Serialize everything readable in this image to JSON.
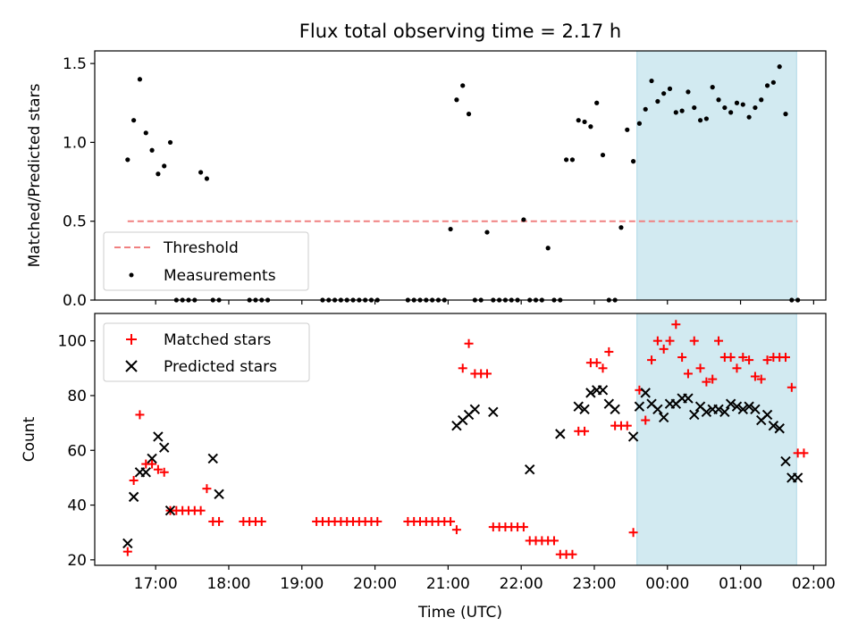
{
  "title": "Flux total observing time = 2.17 h",
  "colors": {
    "background": "#ffffff",
    "shade": "#add8e6",
    "threshold": "#f08080",
    "measurements": "#000000",
    "matched": "#ff0000",
    "predicted": "#000000"
  },
  "chart_data": [
    {
      "type": "scatter",
      "ylabel": "Matched/Predicted stars",
      "xlim": [
        "16:10",
        "26:10"
      ],
      "ylim": [
        0,
        1.58
      ],
      "yticks": [
        0.0,
        0.5,
        1.0,
        1.5
      ],
      "ytick_labels": [
        "0.0",
        "0.5",
        "1.0",
        "1.5"
      ],
      "grid": false,
      "legend": {
        "position": "lower-left",
        "entries": [
          "Threshold",
          "Measurements"
        ]
      },
      "shaded_region": {
        "x_start": "23:35",
        "x_end": "25:46"
      },
      "threshold": {
        "name": "Threshold",
        "value": 0.5,
        "x_start": "16:37",
        "x_end": "25:47",
        "style": "dashed"
      },
      "series": [
        {
          "name": "Measurements",
          "marker": "dot",
          "x": [
            "16:37",
            "16:42",
            "16:47",
            "16:52",
            "16:57",
            "17:02",
            "17:07",
            "17:12",
            "17:17",
            "17:22",
            "17:27",
            "17:32",
            "17:37",
            "17:42",
            "17:47",
            "17:52",
            "18:17",
            "18:22",
            "18:27",
            "18:32",
            "19:17",
            "19:22",
            "19:27",
            "19:32",
            "19:37",
            "19:42",
            "19:47",
            "19:52",
            "19:57",
            "20:02",
            "20:27",
            "20:32",
            "20:37",
            "20:42",
            "20:47",
            "20:52",
            "20:57",
            "21:02",
            "21:07",
            "21:12",
            "21:17",
            "21:22",
            "21:27",
            "21:32",
            "21:37",
            "21:42",
            "21:47",
            "21:52",
            "21:57",
            "22:02",
            "22:07",
            "22:12",
            "22:17",
            "22:22",
            "22:27",
            "22:32",
            "22:37",
            "22:42",
            "22:47",
            "22:52",
            "22:57",
            "23:02",
            "23:07",
            "23:12",
            "23:17",
            "23:22",
            "23:27",
            "23:32",
            "23:37",
            "23:42",
            "23:47",
            "23:52",
            "23:57",
            "24:02",
            "24:07",
            "24:12",
            "24:17",
            "24:22",
            "24:27",
            "24:32",
            "24:37",
            "24:42",
            "24:47",
            "24:52",
            "24:57",
            "25:02",
            "25:07",
            "25:12",
            "25:17",
            "25:22",
            "25:27",
            "25:32",
            "25:37",
            "25:42",
            "25:47"
          ],
          "y": [
            0.89,
            1.14,
            1.4,
            1.06,
            0.95,
            0.8,
            0.85,
            1.0,
            0.0,
            0.0,
            0.0,
            0.0,
            0.81,
            0.77,
            0.0,
            0.0,
            0.0,
            0.0,
            0.0,
            0.0,
            0.0,
            0.0,
            0.0,
            0.0,
            0.0,
            0.0,
            0.0,
            0.0,
            0.0,
            0.0,
            0.0,
            0.0,
            0.0,
            0.0,
            0.0,
            0.0,
            0.0,
            0.45,
            1.27,
            1.36,
            1.18,
            0.0,
            0.0,
            0.43,
            0.0,
            0.0,
            0.0,
            0.0,
            0.0,
            0.51,
            0.0,
            0.0,
            0.0,
            0.33,
            0.0,
            0.0,
            0.89,
            0.89,
            1.14,
            1.13,
            1.1,
            1.25,
            0.92,
            0.0,
            0.0,
            0.46,
            1.08,
            0.88,
            1.12,
            1.21,
            1.39,
            1.26,
            1.31,
            1.34,
            1.19,
            1.2,
            1.32,
            1.22,
            1.14,
            1.15,
            1.35,
            1.27,
            1.22,
            1.19,
            1.25,
            1.24,
            1.16,
            1.22,
            1.27,
            1.36,
            1.38,
            1.48,
            1.18,
            0.0,
            0.0
          ]
        }
      ]
    },
    {
      "type": "scatter",
      "xlabel": "Time (UTC)",
      "ylabel": "Count",
      "xlim": [
        "16:10",
        "26:10"
      ],
      "ylim": [
        18,
        110
      ],
      "yticks": [
        20,
        40,
        60,
        80,
        100
      ],
      "ytick_labels": [
        "20",
        "40",
        "60",
        "80",
        "100"
      ],
      "xticks": [
        "17:00",
        "18:00",
        "19:00",
        "20:00",
        "21:00",
        "22:00",
        "23:00",
        "24:00",
        "25:00",
        "26:00"
      ],
      "xtick_labels": [
        "17:00",
        "18:00",
        "19:00",
        "20:00",
        "21:00",
        "22:00",
        "23:00",
        "00:00",
        "01:00",
        "02:00"
      ],
      "grid": false,
      "legend": {
        "position": "top-left",
        "entries": [
          "Matched stars",
          "Predicted stars"
        ]
      },
      "shaded_region": {
        "x_start": "23:35",
        "x_end": "25:46"
      },
      "series": [
        {
          "name": "Matched stars",
          "marker": "plus",
          "x": [
            "16:37",
            "16:42",
            "16:47",
            "16:52",
            "16:57",
            "17:02",
            "17:07",
            "17:12",
            "17:17",
            "17:22",
            "17:27",
            "17:32",
            "17:37",
            "17:42",
            "17:47",
            "17:52",
            "18:12",
            "18:17",
            "18:22",
            "18:27",
            "19:12",
            "19:17",
            "19:22",
            "19:27",
            "19:32",
            "19:37",
            "19:42",
            "19:47",
            "19:52",
            "19:57",
            "20:02",
            "20:27",
            "20:32",
            "20:37",
            "20:42",
            "20:47",
            "20:52",
            "20:57",
            "21:02",
            "21:07",
            "21:12",
            "21:17",
            "21:22",
            "21:27",
            "21:32",
            "21:37",
            "21:42",
            "21:47",
            "21:52",
            "21:57",
            "22:02",
            "22:07",
            "22:12",
            "22:17",
            "22:22",
            "22:27",
            "22:32",
            "22:37",
            "22:42",
            "22:47",
            "22:52",
            "22:57",
            "23:02",
            "23:07",
            "23:12",
            "23:17",
            "23:22",
            "23:27",
            "23:32",
            "23:37",
            "23:42",
            "23:47",
            "23:52",
            "23:57",
            "24:02",
            "24:07",
            "24:12",
            "24:17",
            "24:22",
            "24:27",
            "24:32",
            "24:37",
            "24:42",
            "24:47",
            "24:52",
            "24:57",
            "25:02",
            "25:07",
            "25:12",
            "25:17",
            "25:22",
            "25:27",
            "25:32",
            "25:37",
            "25:42",
            "25:47",
            "25:52"
          ],
          "y": [
            23,
            49,
            73,
            55,
            55,
            53,
            52,
            38,
            38,
            38,
            38,
            38,
            38,
            46,
            34,
            34,
            34,
            34,
            34,
            34,
            34,
            34,
            34,
            34,
            34,
            34,
            34,
            34,
            34,
            34,
            34,
            34,
            34,
            34,
            34,
            34,
            34,
            34,
            34,
            31,
            90,
            99,
            88,
            88,
            88,
            32,
            32,
            32,
            32,
            32,
            32,
            27,
            27,
            27,
            27,
            27,
            22,
            22,
            22,
            67,
            67,
            92,
            92,
            90,
            96,
            69,
            69,
            69,
            30,
            82,
            71,
            93,
            100,
            97,
            100,
            106,
            94,
            88,
            100,
            90,
            85,
            86,
            100,
            94,
            94,
            90,
            94,
            93,
            87,
            86,
            93,
            94,
            94,
            94,
            83,
            59,
            59
          ]
        },
        {
          "name": "Predicted stars",
          "marker": "x",
          "x": [
            "16:37",
            "16:42",
            "16:47",
            "16:52",
            "16:57",
            "17:02",
            "17:07",
            "17:12",
            "17:47",
            "17:52",
            "21:07",
            "21:12",
            "21:17",
            "21:22",
            "21:37",
            "22:07",
            "22:32",
            "22:47",
            "22:52",
            "22:57",
            "23:02",
            "23:07",
            "23:12",
            "23:17",
            "23:32",
            "23:37",
            "23:42",
            "23:47",
            "23:52",
            "23:57",
            "24:02",
            "24:07",
            "24:12",
            "24:17",
            "24:22",
            "24:27",
            "24:32",
            "24:37",
            "24:42",
            "24:47",
            "24:52",
            "24:57",
            "25:02",
            "25:07",
            "25:12",
            "25:17",
            "25:22",
            "25:27",
            "25:32",
            "25:37",
            "25:42",
            "25:47"
          ],
          "y": [
            26,
            43,
            52,
            52,
            57,
            65,
            61,
            38,
            57,
            44,
            69,
            71,
            73,
            75,
            74,
            53,
            66,
            76,
            75,
            81,
            82,
            82,
            77,
            75,
            65,
            76,
            81,
            77,
            75,
            72,
            77,
            77,
            79,
            79,
            73,
            76,
            74,
            75,
            75,
            74,
            77,
            76,
            75,
            76,
            75,
            71,
            73,
            69,
            68,
            56,
            50,
            50
          ]
        }
      ]
    }
  ]
}
